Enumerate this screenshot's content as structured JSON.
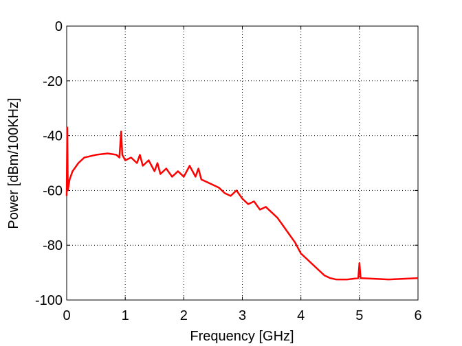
{
  "chart_data": {
    "type": "line",
    "xlabel": "Frequency [GHz]",
    "ylabel": "Power [dBm/100KHz]",
    "x": [
      0,
      0.01,
      0.02,
      0.05,
      0.1,
      0.2,
      0.3,
      0.5,
      0.7,
      0.85,
      0.9,
      0.93,
      0.95,
      1.0,
      1.1,
      1.2,
      1.25,
      1.3,
      1.4,
      1.5,
      1.55,
      1.6,
      1.7,
      1.8,
      1.9,
      2.0,
      2.1,
      2.2,
      2.25,
      2.3,
      2.4,
      2.5,
      2.6,
      2.7,
      2.8,
      2.9,
      3.0,
      3.1,
      3.2,
      3.3,
      3.4,
      3.5,
      3.6,
      3.7,
      3.8,
      3.9,
      4.0,
      4.1,
      4.2,
      4.3,
      4.4,
      4.5,
      4.6,
      4.8,
      4.98,
      5.0,
      5.02,
      5.5,
      6.0
    ],
    "series": [
      {
        "name": "Power",
        "color": "#ff0000",
        "values": [
          -62,
          -37,
          -60,
          -56,
          -53,
          -50,
          -48,
          -47,
          -46.5,
          -47,
          -48,
          -38.5,
          -47,
          -49,
          -48,
          -50,
          -47,
          -51,
          -49,
          -53,
          -50,
          -54,
          -52,
          -55,
          -53,
          -55,
          -51,
          -55,
          -52,
          -56,
          -57,
          -58,
          -59,
          -61,
          -62,
          -60,
          -63,
          -65,
          -64,
          -67,
          -66,
          -68,
          -70,
          -73,
          -76,
          -79,
          -83,
          -85,
          -87,
          -89,
          -91,
          -92,
          -92.5,
          -92.5,
          -92,
          -86.5,
          -92,
          -92.5,
          -92
        ]
      }
    ],
    "xlim": [
      0,
      6
    ],
    "ylim": [
      -100,
      0
    ],
    "xticks": [
      0,
      1,
      2,
      3,
      4,
      5,
      6
    ],
    "yticks": [
      -100,
      -80,
      -60,
      -40,
      -20,
      0
    ],
    "grid": true
  }
}
